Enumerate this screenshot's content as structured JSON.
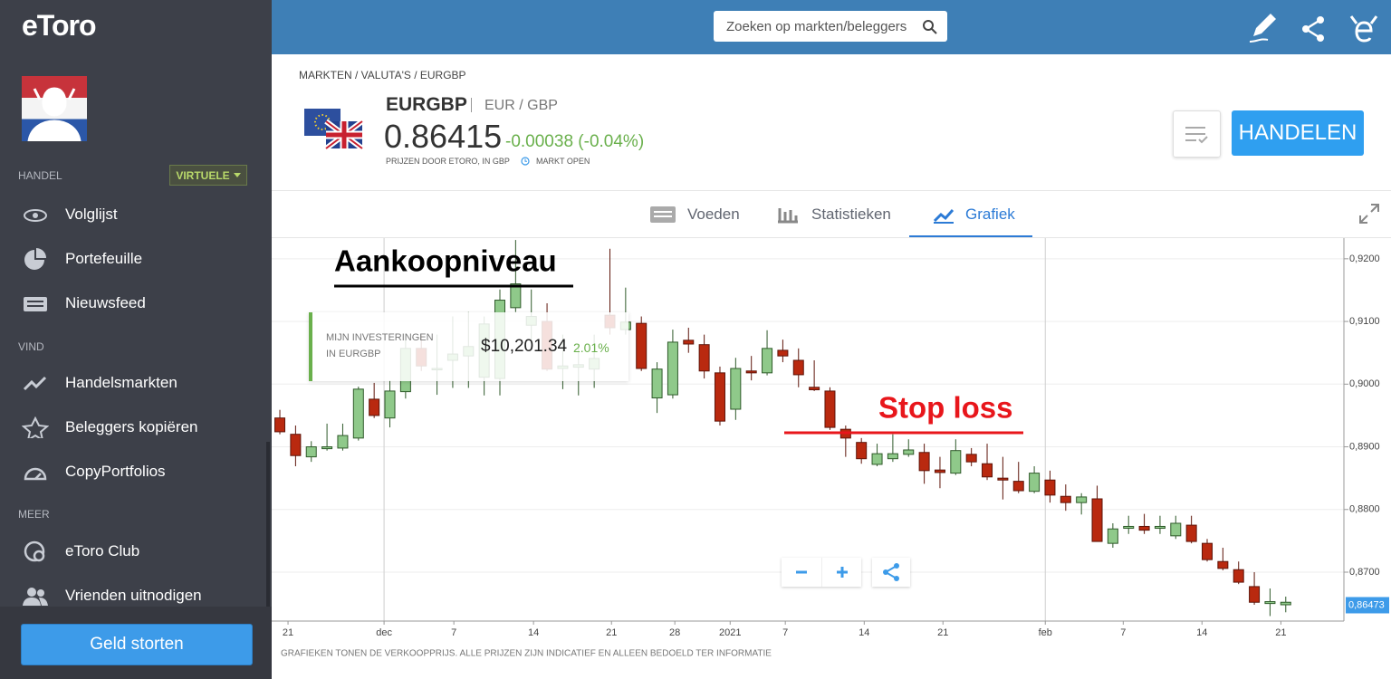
{
  "sidebar": {
    "brand": "eToro",
    "badge": "VIRTUELE",
    "sections": [
      {
        "title": "HANDEL",
        "items": [
          "Volglijst",
          "Portefeuille",
          "Nieuwsfeed"
        ]
      },
      {
        "title": "VIND",
        "items": [
          "Handelsmarkten",
          "Beleggers kopiëren",
          "CopyPortfolios"
        ]
      },
      {
        "title": "MEER",
        "items": [
          "eToro Club",
          "Vrienden uitnodigen"
        ]
      }
    ],
    "button": "Geld storten"
  },
  "header": {
    "search_placeholder": "Zoeken op markten/beleggers"
  },
  "instrument": {
    "breadcrumb": "MARKTEN / VALUTA'S / EURGBP",
    "symbol": "EURGBP",
    "pair": "EUR / GBP",
    "price": "0.86415",
    "change": "-0.00038 (-0.04%)",
    "source": "PRIJZEN DOOR ETORO, IN GBP",
    "status": "MARKT OPEN",
    "trade_button": "HANDELEN"
  },
  "tabs": [
    "Voeden",
    "Statistieken",
    "Grafiek"
  ],
  "investment": {
    "label_1": "MIJN INVESTERINGEN",
    "label_2": "IN EURGBP",
    "amount": "$10,201.34",
    "gain": "2.01%"
  },
  "chart_data": {
    "type": "candlestick",
    "open": [
      0.8946,
      0.892,
      0.8884,
      0.8897,
      0.8898,
      0.8914,
      0.8976,
      0.8946,
      0.8988,
      0.9057,
      0.9023,
      0.9038,
      0.9045,
      0.9011,
      0.9009,
      0.9122,
      0.9094,
      0.91,
      0.9025,
      0.9027,
      0.9024,
      0.911,
      0.9087,
      0.9097,
      0.8978,
      0.8983,
      0.907,
      0.9063,
      0.9018,
      0.896,
      0.9021,
      0.9018,
      0.9054,
      0.9038,
      0.8995,
      0.8989,
      0.8928,
      0.8907,
      0.8872,
      0.8881,
      0.8888,
      0.8891,
      0.8863,
      0.8858,
      0.8888,
      0.8873,
      0.885,
      0.8845,
      0.8829,
      0.8847,
      0.8821,
      0.8811,
      0.8817,
      0.8746,
      0.877,
      0.8773,
      0.877,
      0.8758,
      0.8775,
      0.8746,
      0.8717,
      0.8704,
      0.8677,
      0.865,
      0.8648
    ],
    "high": [
      0.8959,
      0.8934,
      0.8909,
      0.8937,
      0.8937,
      0.8996,
      0.9002,
      0.9006,
      0.9079,
      0.9079,
      0.9079,
      0.9108,
      0.9115,
      0.9108,
      0.9151,
      0.923,
      0.9151,
      0.9129,
      0.9079,
      0.9064,
      0.9079,
      0.9216,
      0.9154,
      0.9108,
      0.9035,
      0.9087,
      0.909,
      0.9079,
      0.9028,
      0.9042,
      0.9045,
      0.9086,
      0.9071,
      0.9057,
      0.9038,
      0.8995,
      0.8934,
      0.8914,
      0.8905,
      0.892,
      0.8912,
      0.8905,
      0.8884,
      0.8912,
      0.8898,
      0.8905,
      0.8884,
      0.8876,
      0.8869,
      0.8862,
      0.884,
      0.8826,
      0.8838,
      0.8778,
      0.879,
      0.8793,
      0.879,
      0.879,
      0.879,
      0.8753,
      0.8739,
      0.8717,
      0.87,
      0.8674,
      0.8661
    ],
    "low": [
      0.892,
      0.8869,
      0.8876,
      0.8894,
      0.8894,
      0.891,
      0.8946,
      0.8931,
      0.8977,
      0.9021,
      0.8983,
      0.8994,
      0.8994,
      0.8982,
      0.8982,
      0.9115,
      0.9064,
      0.9021,
      0.8992,
      0.8982,
      0.8994,
      0.9079,
      0.9079,
      0.9021,
      0.8954,
      0.8977,
      0.905,
      0.9009,
      0.8934,
      0.8943,
      0.9006,
      0.9014,
      0.9035,
      0.8995,
      0.8989,
      0.8927,
      0.8884,
      0.8873,
      0.8869,
      0.8876,
      0.8884,
      0.8841,
      0.8834,
      0.8855,
      0.8869,
      0.8847,
      0.8816,
      0.8826,
      0.8826,
      0.8811,
      0.8798,
      0.8792,
      0.8749,
      0.8739,
      0.8761,
      0.8761,
      0.8761,
      0.8753,
      0.8746,
      0.8717,
      0.8703,
      0.8681,
      0.8648,
      0.863,
      0.8636
    ],
    "close": [
      0.8924,
      0.8886,
      0.89,
      0.89,
      0.8918,
      0.8992,
      0.895,
      0.8989,
      0.9057,
      0.9029,
      0.9025,
      0.9048,
      0.906,
      0.9096,
      0.9134,
      0.916,
      0.9108,
      0.9024,
      0.9029,
      0.9031,
      0.9041,
      0.909,
      0.9099,
      0.9025,
      0.9024,
      0.9067,
      0.9064,
      0.9021,
      0.8941,
      0.9025,
      0.9018,
      0.9057,
      0.9045,
      0.9015,
      0.8991,
      0.8931,
      0.8914,
      0.8881,
      0.8889,
      0.8889,
      0.8895,
      0.8862,
      0.8859,
      0.8894,
      0.8876,
      0.8852,
      0.8847,
      0.883,
      0.8858,
      0.8823,
      0.8811,
      0.882,
      0.8749,
      0.8769,
      0.8773,
      0.8767,
      0.8773,
      0.8778,
      0.8749,
      0.872,
      0.8706,
      0.8684,
      0.8652,
      0.8653,
      0.8652
    ],
    "up_color": "#8fc98a",
    "down_color": "#b9290f",
    "ylim": [
      0.8622,
      0.9233
    ],
    "yticks": [
      {
        "value": 0.87,
        "label": "0,8700"
      },
      {
        "value": 0.88,
        "label": "0,8800"
      },
      {
        "value": 0.89,
        "label": "0,8900"
      },
      {
        "value": 0.9,
        "label": "0,9000"
      },
      {
        "value": 0.91,
        "label": "0,9100"
      },
      {
        "value": 0.92,
        "label": "0,9200"
      }
    ],
    "xlim": [
      -0.52,
      67.7
    ],
    "xticks": [
      {
        "value": 0.52,
        "label": "21"
      },
      {
        "value": 6.63,
        "label": "dec"
      },
      {
        "value": 11.07,
        "label": "7"
      },
      {
        "value": 16.14,
        "label": "14"
      },
      {
        "value": 21.1,
        "label": "21"
      },
      {
        "value": 25.13,
        "label": "28"
      },
      {
        "value": 28.65,
        "label": "2021"
      },
      {
        "value": 32.16,
        "label": "7"
      },
      {
        "value": 37.18,
        "label": "14"
      },
      {
        "value": 42.19,
        "label": "21"
      },
      {
        "value": 48.7,
        "label": "feb"
      },
      {
        "value": 53.66,
        "label": "7"
      },
      {
        "value": 58.67,
        "label": "14"
      },
      {
        "value": 63.69,
        "label": "21"
      }
    ],
    "last_price": {
      "value": 0.86473,
      "label": "0,86473"
    },
    "annotations": [
      "Aankoopniveau",
      "Stop loss"
    ],
    "footnote": "GRAFIEKEN TONEN DE VERKOOPPRIJS. ALLE PRIJZEN ZIJN INDICATIEF EN ALLEEN BEDOELD TER INFORMATIE"
  }
}
